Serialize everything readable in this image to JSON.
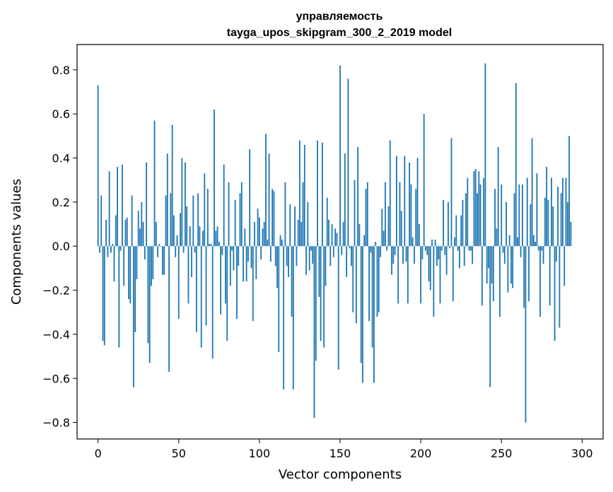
{
  "chart_data": {
    "type": "bar",
    "title_line1": "управляемость",
    "title_line2": "tayga_upos_skipgram_300_2_2019 model",
    "xlabel": "Vector components",
    "ylabel": "Components values",
    "xlim": [
      -13,
      313
    ],
    "ylim": [
      -0.875,
      0.915
    ],
    "xticks": [
      0,
      50,
      100,
      150,
      200,
      250,
      300
    ],
    "xtick_labels": [
      "0",
      "50",
      "100",
      "150",
      "200",
      "250",
      "300"
    ],
    "yticks": [
      0.8,
      0.6,
      0.4,
      0.2,
      0.0,
      -0.2,
      -0.4,
      -0.6,
      -0.8
    ],
    "ytick_labels": [
      "0.8",
      "0.6",
      "0.4",
      "0.2",
      "0.0",
      "−0.2",
      "−0.4",
      "−0.6",
      "−0.8"
    ],
    "bar_color": "#1f77b4",
    "values": [
      0.73,
      -0.03,
      0.23,
      -0.43,
      -0.45,
      0.12,
      -0.05,
      0.34,
      -0.03,
      0.01,
      -0.16,
      0.14,
      0.36,
      -0.46,
      -0.02,
      0.37,
      -0.18,
      0.12,
      0.13,
      -0.24,
      -0.26,
      0.23,
      -0.64,
      -0.39,
      -0.15,
      0.16,
      0.08,
      0.2,
      0.11,
      -0.06,
      0.38,
      -0.44,
      -0.53,
      -0.18,
      -0.15,
      0.57,
      0.11,
      -0.05,
      0.01,
      0.0,
      -0.13,
      -0.13,
      0.23,
      0.42,
      -0.57,
      0.24,
      0.55,
      0.14,
      -0.05,
      0.05,
      -0.33,
      0.15,
      0.4,
      -0.03,
      0.38,
      0.18,
      -0.26,
      0.09,
      -0.14,
      0.23,
      -0.03,
      -0.39,
      0.24,
      0.09,
      -0.46,
      0.07,
      0.33,
      -0.36,
      0.26,
      0.01,
      0.01,
      -0.51,
      0.62,
      0.07,
      0.09,
      0.02,
      -0.31,
      -0.04,
      0.37,
      -0.26,
      -0.43,
      0.29,
      -0.18,
      -0.02,
      -0.11,
      0.21,
      -0.33,
      -0.09,
      0.24,
      0.29,
      -0.16,
      0.08,
      -0.16,
      -0.07,
      0.44,
      -0.1,
      -0.34,
      0.11,
      -0.15,
      0.17,
      0.13,
      -0.06,
      0.08,
      0.11,
      0.51,
      0.03,
      0.42,
      -0.07,
      0.26,
      0.25,
      -0.09,
      -0.19,
      -0.48,
      0.05,
      0.03,
      -0.65,
      0.29,
      -0.09,
      -0.14,
      0.19,
      -0.32,
      -0.65,
      0.18,
      -0.09,
      0.12,
      0.48,
      0.11,
      0.29,
      0.46,
      -0.13,
      0.2,
      -0.11,
      -0.02,
      -0.08,
      -0.78,
      -0.52,
      0.48,
      -0.23,
      -0.43,
      0.47,
      -0.46,
      -0.18,
      0.22,
      0.12,
      -0.09,
      0.1,
      -0.05,
      0.08,
      0.06,
      -0.56,
      0.82,
      -0.04,
      0.11,
      0.42,
      -0.14,
      0.76,
      -0.01,
      -0.09,
      -0.3,
      0.3,
      -0.35,
      0.45,
      0.1,
      -0.53,
      -0.62,
      0.05,
      0.26,
      0.29,
      -0.34,
      -0.03,
      -0.46,
      -0.62,
      0.02,
      -0.32,
      -0.3,
      -0.05,
      0.17,
      0.07,
      0.29,
      -0.02,
      0.18,
      0.48,
      -0.13,
      -0.08,
      -0.04,
      0.41,
      -0.26,
      0.29,
      0.16,
      -0.08,
      0.41,
      -0.07,
      -0.26,
      0.38,
      0.28,
      0.04,
      -0.08,
      0.26,
      0.4,
      0.1,
      -0.26,
      -0.06,
      0.6,
      -0.02,
      -0.04,
      -0.16,
      -0.2,
      0.03,
      -0.32,
      0.03,
      -0.09,
      -0.06,
      -0.26,
      -0.02,
      0.21,
      -0.04,
      -0.13,
      0.2,
      -0.01,
      0.49,
      -0.25,
      0.04,
      0.14,
      -0.02,
      -0.1,
      0.14,
      0.21,
      -0.09,
      0.24,
      0.31,
      -0.02,
      -0.02,
      -0.08,
      0.34,
      0.35,
      0.24,
      0.34,
      0.28,
      -0.27,
      0.31,
      0.83,
      -0.17,
      -0.1,
      -0.64,
      -0.17,
      -0.25,
      0.26,
      0.08,
      0.45,
      -0.32,
      0.28,
      -0.03,
      -0.08,
      0.2,
      -0.21,
      0.05,
      -0.17,
      -0.19,
      0.24,
      0.74,
      0.04,
      0.28,
      -0.05,
      0.28,
      -0.28,
      -0.8,
      0.31,
      -0.25,
      0.19,
      0.49,
      0.05,
      0.02,
      0.33,
      -0.02,
      -0.32,
      -0.02,
      -0.08,
      0.22,
      0.36,
      0.21,
      -0.27,
      0.31,
      0.18,
      -0.43,
      -0.07,
      0.27,
      -0.37,
      0.24,
      0.31,
      -0.18,
      0.31,
      0.2,
      0.5,
      0.11
    ]
  }
}
